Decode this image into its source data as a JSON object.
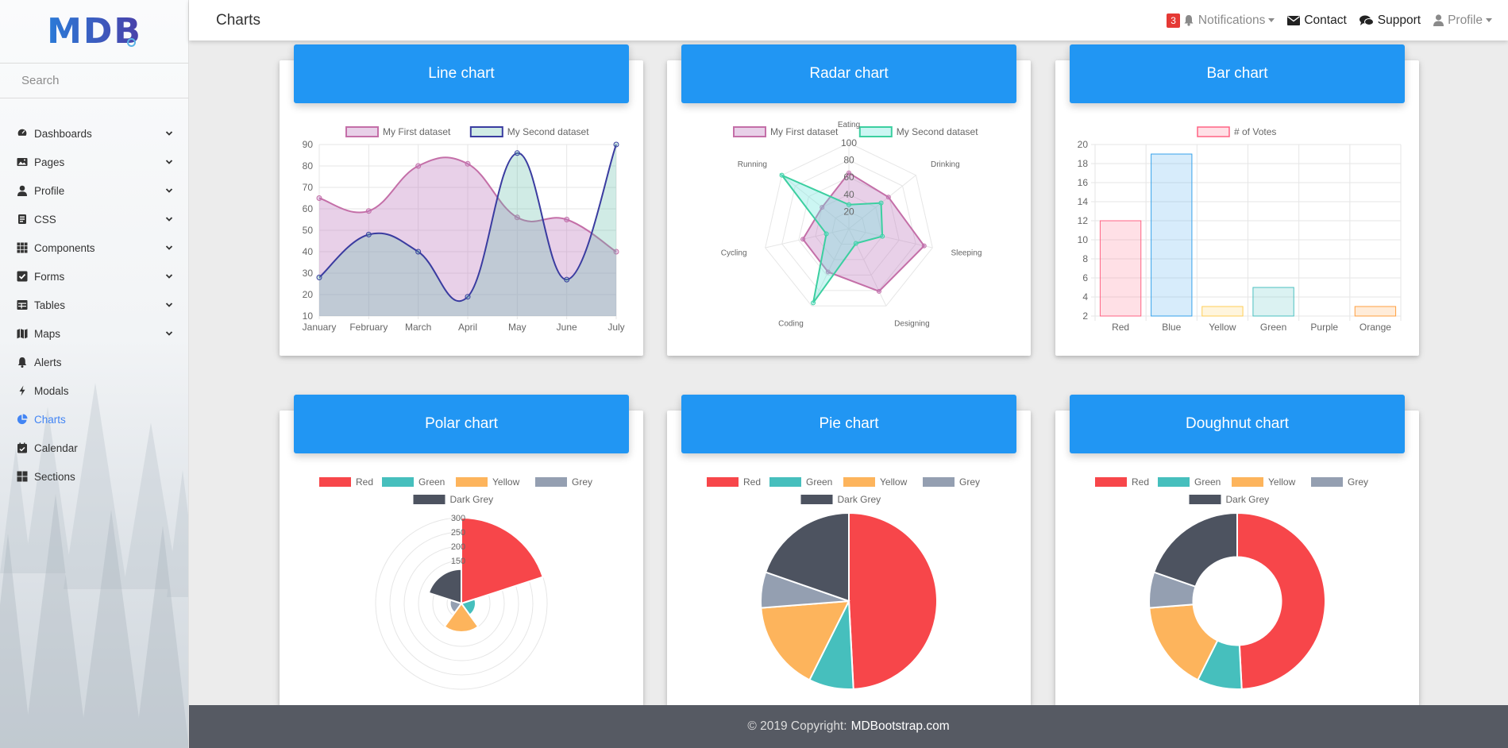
{
  "app": {
    "logo_text": "MDB"
  },
  "header": {
    "title": "Charts"
  },
  "topbar": {
    "notifications_count": "3",
    "notifications_label": "Notifications",
    "contact_label": "Contact",
    "support_label": "Support",
    "profile_label": "Profile"
  },
  "sidebar": {
    "search_placeholder": "Search",
    "items": [
      {
        "label": "Dashboards",
        "icon": "dashboard-icon",
        "has_children": true
      },
      {
        "label": "Pages",
        "icon": "image-icon",
        "has_children": true
      },
      {
        "label": "Profile",
        "icon": "user-icon",
        "has_children": true
      },
      {
        "label": "CSS",
        "icon": "css-icon",
        "has_children": true
      },
      {
        "label": "Components",
        "icon": "grid-icon",
        "has_children": true
      },
      {
        "label": "Forms",
        "icon": "checkbox-icon",
        "has_children": true
      },
      {
        "label": "Tables",
        "icon": "table-icon",
        "has_children": true
      },
      {
        "label": "Maps",
        "icon": "map-icon",
        "has_children": true
      },
      {
        "label": "Alerts",
        "icon": "bell-icon",
        "has_children": false
      },
      {
        "label": "Modals",
        "icon": "bolt-icon",
        "has_children": false
      },
      {
        "label": "Charts",
        "icon": "pie-chart-icon",
        "has_children": false,
        "active": true
      },
      {
        "label": "Calendar",
        "icon": "calendar-icon",
        "has_children": false
      },
      {
        "label": "Sections",
        "icon": "sections-icon",
        "has_children": false
      }
    ]
  },
  "cards": {
    "line": {
      "title": "Line chart"
    },
    "radar": {
      "title": "Radar chart"
    },
    "bar": {
      "title": "Bar chart"
    },
    "polar": {
      "title": "Polar chart"
    },
    "pie": {
      "title": "Pie chart"
    },
    "doughnut": {
      "title": "Doughnut chart"
    }
  },
  "colors": {
    "primary": "#2196f3",
    "red": "#F7464A",
    "green": "#46BFBD",
    "yellow": "#FDB45C",
    "grey": "#949FB1",
    "dark_grey": "#4D5360",
    "footer_bg": "#565a63"
  },
  "chart_data": [
    {
      "type": "line",
      "categories": [
        "January",
        "February",
        "March",
        "April",
        "May",
        "June",
        "July"
      ],
      "series": [
        {
          "name": "My First dataset",
          "values": [
            65,
            59,
            80,
            81,
            56,
            55,
            40
          ],
          "color": "#c46fa8",
          "fill": "rgba(190,120,190,0.35)"
        },
        {
          "name": "My Second dataset",
          "values": [
            28,
            48,
            40,
            19,
            86,
            27,
            90
          ],
          "color": "#3a3ca0",
          "fill": "rgba(100,190,170,0.3)"
        }
      ],
      "yticks": [
        10,
        20,
        30,
        40,
        50,
        60,
        70,
        80,
        90
      ],
      "ylim": [
        10,
        90
      ]
    },
    {
      "type": "radar",
      "categories": [
        "Eating",
        "Drinking",
        "Sleeping",
        "Designing",
        "Coding",
        "Cycling",
        "Running"
      ],
      "series": [
        {
          "name": "My First dataset",
          "values": [
            65,
            59,
            90,
            81,
            56,
            55,
            40
          ],
          "color": "#c46fa8",
          "fill": "rgba(190,120,190,0.35)"
        },
        {
          "name": "My Second dataset",
          "values": [
            28,
            48,
            40,
            19,
            96,
            27,
            100
          ],
          "color": "#3ccfa0",
          "fill": "rgba(110,230,220,0.35)"
        }
      ],
      "rticks": [
        20,
        40,
        60,
        80,
        100
      ],
      "rlim": [
        0,
        100
      ]
    },
    {
      "type": "bar",
      "categories": [
        "Red",
        "Blue",
        "Yellow",
        "Green",
        "Purple",
        "Orange"
      ],
      "series": [
        {
          "name": "# of Votes",
          "values": [
            12,
            19,
            3,
            5,
            2,
            3
          ]
        }
      ],
      "bar_fills": [
        "rgba(255,99,132,0.2)",
        "rgba(54,162,235,0.2)",
        "rgba(255,206,86,0.2)",
        "rgba(75,192,192,0.2)",
        "rgba(153,102,255,0.2)",
        "rgba(255,159,64,0.2)"
      ],
      "bar_strokes": [
        "rgba(255,99,132,1)",
        "rgba(54,162,235,1)",
        "rgba(255,206,86,1)",
        "rgba(75,192,192,1)",
        "rgba(153,102,255,1)",
        "rgba(255,159,64,1)"
      ],
      "yticks": [
        2,
        4,
        6,
        8,
        10,
        12,
        14,
        16,
        18,
        20
      ],
      "ylim": [
        2,
        20
      ]
    },
    {
      "type": "polar",
      "categories": [
        "Red",
        "Green",
        "Yellow",
        "Grey",
        "Dark Grey"
      ],
      "values": [
        300,
        50,
        100,
        40,
        120
      ],
      "colors": [
        "#F7464A",
        "#46BFBD",
        "#FDB45C",
        "#949FB1",
        "#4D5360"
      ],
      "rticks": [
        150,
        200,
        250,
        300
      ],
      "rlim": [
        0,
        300
      ]
    },
    {
      "type": "pie",
      "categories": [
        "Red",
        "Green",
        "Yellow",
        "Grey",
        "Dark Grey"
      ],
      "values": [
        300,
        50,
        100,
        40,
        120
      ],
      "colors": [
        "#F7464A",
        "#46BFBD",
        "#FDB45C",
        "#949FB1",
        "#4D5360"
      ]
    },
    {
      "type": "doughnut",
      "categories": [
        "Red",
        "Green",
        "Yellow",
        "Grey",
        "Dark Grey"
      ],
      "values": [
        300,
        50,
        100,
        40,
        120
      ],
      "colors": [
        "#F7464A",
        "#46BFBD",
        "#FDB45C",
        "#949FB1",
        "#4D5360"
      ]
    }
  ],
  "footer": {
    "copyright": "© 2019 Copyright:",
    "brand": "MDBootstrap.com"
  }
}
